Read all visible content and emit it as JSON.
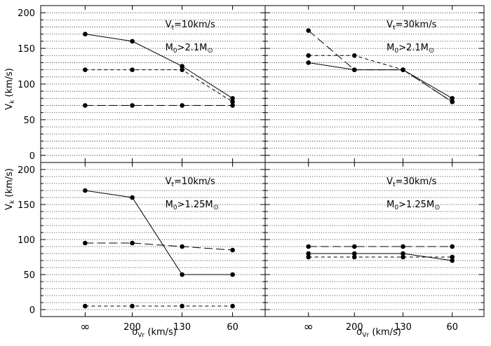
{
  "figure": {
    "ylabel_main": "V",
    "ylabel_sub": "k",
    "ylabel_unit": " (km/s)",
    "xlabel_main": "σ",
    "xlabel_sub": "Vr",
    "xlabel_unit": " (km/s)"
  },
  "chart_data": [
    {
      "type": "line",
      "panel": "top-left",
      "categories": [
        "∞",
        "200",
        "130",
        "60"
      ],
      "ylim": [
        -10,
        210
      ],
      "yticks": [
        0,
        50,
        100,
        150,
        200
      ],
      "grid": true,
      "annotations": [
        {
          "main": "V",
          "sub": "t",
          "rest": "=10km/s"
        },
        {
          "main": "M",
          "sub": "0",
          "rest": ">2.1M",
          "sun": "⊙"
        }
      ],
      "series": [
        {
          "name": "solid",
          "style": "solid",
          "values": [
            170,
            160,
            125,
            80
          ]
        },
        {
          "name": "short-dash",
          "style": "dash-short",
          "values": [
            120,
            120,
            120,
            75
          ]
        },
        {
          "name": "long-dash",
          "style": "dash-long",
          "values": [
            70,
            70,
            70,
            70
          ]
        }
      ]
    },
    {
      "type": "line",
      "panel": "top-right",
      "categories": [
        "∞",
        "200",
        "130",
        "60"
      ],
      "ylim": [
        -10,
        210
      ],
      "yticks": [
        0,
        50,
        100,
        150,
        200
      ],
      "grid": true,
      "annotations": [
        {
          "main": "V",
          "sub": "t",
          "rest": "=30km/s"
        },
        {
          "main": "M",
          "sub": "0",
          "rest": ">2.1M",
          "sun": "⊙"
        }
      ],
      "series": [
        {
          "name": "solid",
          "style": "solid",
          "values": [
            130,
            120,
            120,
            80
          ]
        },
        {
          "name": "short-dash",
          "style": "dash-short",
          "values": [
            140,
            140,
            120,
            75
          ]
        },
        {
          "name": "long-dash",
          "style": "dash-long",
          "values": [
            175,
            120,
            120,
            75
          ]
        }
      ]
    },
    {
      "type": "line",
      "panel": "bottom-left",
      "categories": [
        "∞",
        "200",
        "130",
        "60"
      ],
      "ylim": [
        -10,
        210
      ],
      "yticks": [
        0,
        50,
        100,
        150,
        200
      ],
      "grid": true,
      "annotations": [
        {
          "main": "V",
          "sub": "t",
          "rest": "=10km/s"
        },
        {
          "main": "M",
          "sub": "0",
          "rest": ">1.25M",
          "sun": "⊙"
        }
      ],
      "series": [
        {
          "name": "solid",
          "style": "solid",
          "values": [
            170,
            160,
            50,
            50
          ]
        },
        {
          "name": "long-dash",
          "style": "dash-long",
          "values": [
            95,
            95,
            90,
            85
          ]
        },
        {
          "name": "short-dash",
          "style": "dash-short",
          "values": [
            5,
            5,
            5,
            5
          ]
        }
      ]
    },
    {
      "type": "line",
      "panel": "bottom-right",
      "categories": [
        "∞",
        "200",
        "130",
        "60"
      ],
      "ylim": [
        -10,
        210
      ],
      "yticks": [
        0,
        50,
        100,
        150,
        200
      ],
      "grid": true,
      "annotations": [
        {
          "main": "V",
          "sub": "t",
          "rest": "=30km/s"
        },
        {
          "main": "M",
          "sub": "0",
          "rest": ">1.25M",
          "sun": "⊙"
        }
      ],
      "series": [
        {
          "name": "long-dash",
          "style": "dash-long",
          "values": [
            90,
            90,
            90,
            90
          ]
        },
        {
          "name": "solid",
          "style": "solid",
          "values": [
            80,
            80,
            80,
            70
          ]
        },
        {
          "name": "short-dash",
          "style": "dash-short",
          "values": [
            75,
            75,
            75,
            75
          ]
        }
      ]
    }
  ]
}
